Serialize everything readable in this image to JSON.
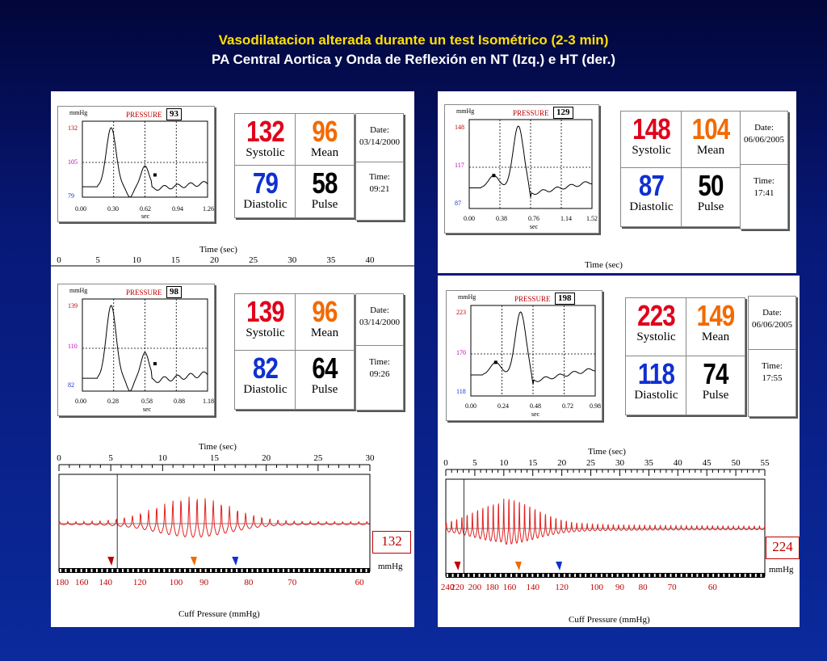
{
  "title": "Vasodilatacion alterada durante un test Isométrico (2-3 min)",
  "subtitle": "PA Central Aortica y Onda de Reflexión en NT (Izq.) e HT (der.)",
  "labels": {
    "unit": "mmHg",
    "pressure": "PRESSURE",
    "sec": "sec",
    "systolic": "Systolic",
    "mean": "Mean",
    "diastolic": "Diastolic",
    "pulse": "Pulse",
    "date": "Date:",
    "time": "Time:",
    "time_sec": "Time (sec)",
    "cuff": "Cuff Pressure (mmHg)"
  },
  "colors": {
    "systolic": "#e0001b",
    "mean": "#f26a00",
    "diastolic": "#1030d0",
    "pulse": "#000000",
    "wave": "#e22020"
  },
  "readings": [
    {
      "pressure_box": "93",
      "y_ticks": [
        "132",
        "105",
        "79"
      ],
      "y_colors": [
        "#c00000",
        "#c000c0",
        "#1030d0"
      ],
      "x_ticks": [
        "0.00",
        "0.30",
        "0.62",
        "0.94",
        "1.26"
      ],
      "systolic": "132",
      "mean": "96",
      "diastolic": "79",
      "pulse": "58",
      "date": "03/14/2000",
      "time": "09:21"
    },
    {
      "pressure_box": "98",
      "y_ticks": [
        "139",
        "110",
        "82"
      ],
      "y_colors": [
        "#c00000",
        "#c000c0",
        "#1030d0"
      ],
      "x_ticks": [
        "0.00",
        "0.28",
        "0.58",
        "0.88",
        "1.18"
      ],
      "systolic": "139",
      "mean": "96",
      "diastolic": "82",
      "pulse": "64",
      "date": "03/14/2000",
      "time": "09:26"
    },
    {
      "pressure_box": "129",
      "y_ticks": [
        "148",
        "117",
        "87"
      ],
      "y_colors": [
        "#c00000",
        "#c000c0",
        "#1030d0"
      ],
      "x_ticks": [
        "0.00",
        "0.38",
        "0.76",
        "1.14",
        "1.52"
      ],
      "systolic": "148",
      "mean": "104",
      "diastolic": "87",
      "pulse": "50",
      "date": "06/06/2005",
      "time": "17:41"
    },
    {
      "pressure_box": "198",
      "y_ticks": [
        "223",
        "170",
        "118"
      ],
      "y_colors": [
        "#c00000",
        "#c000c0",
        "#1030d0"
      ],
      "x_ticks": [
        "0.00",
        "0.24",
        "0.48",
        "0.72",
        "0.98"
      ],
      "systolic": "223",
      "mean": "149",
      "diastolic": "118",
      "pulse": "74",
      "date": "06/06/2005",
      "time": "17:55"
    }
  ],
  "nt_time_axis": [
    "0",
    "5",
    "10",
    "15",
    "20",
    "25",
    "30",
    "35",
    "40"
  ],
  "chart_data": [
    {
      "type": "line",
      "title": "",
      "xlabel": "Time (sec)",
      "x_ticks": [
        "0",
        "5",
        "10",
        "15",
        "20",
        "25",
        "30"
      ],
      "xlim": [
        0,
        30
      ],
      "cuff_ticks": [
        "180",
        "160",
        "140",
        "120",
        "100",
        "90",
        "80",
        "70",
        "60"
      ],
      "cuff_ticks_x": [
        0.3,
        2.2,
        4.5,
        7.8,
        11.3,
        14.0,
        18.3,
        22.5,
        29.0
      ],
      "markers": {
        "systolic_sec": 5.0,
        "mean_sec": 13.0,
        "diastolic_sec": 17.0
      },
      "peak_sec": 13.0,
      "end_value_label": "132",
      "unit": "mmHg"
    },
    {
      "type": "line",
      "title": "",
      "xlabel": "Time (sec)",
      "x_ticks": [
        "0",
        "5",
        "10",
        "15",
        "20",
        "25",
        "30",
        "35",
        "40",
        "45",
        "50",
        "55"
      ],
      "xlim": [
        0,
        55
      ],
      "cuff_ticks": [
        "240",
        "220",
        "200",
        "180",
        "160",
        "140",
        "120",
        "100",
        "90",
        "80",
        "70",
        "60"
      ],
      "cuff_ticks_x": [
        0.3,
        2.0,
        5.0,
        8.0,
        11.0,
        15.0,
        20.0,
        26.0,
        30.0,
        34.0,
        39.0,
        46.0
      ],
      "markers": {
        "systolic_sec": 2.0,
        "mean_sec": 12.5,
        "diastolic_sec": 19.5
      },
      "peak_sec": 10.0,
      "end_value_label": "224",
      "unit": "mmHg"
    }
  ]
}
